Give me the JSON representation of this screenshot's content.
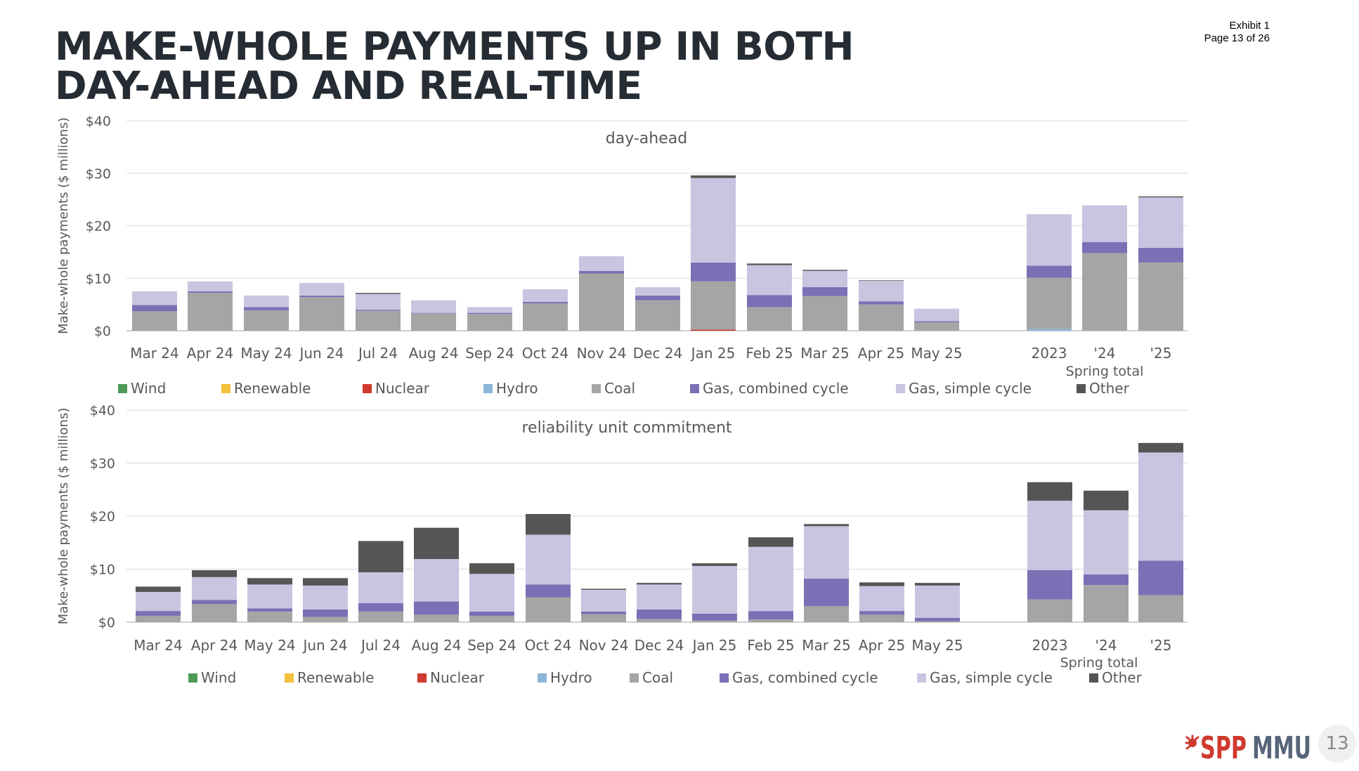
{
  "page": {
    "title_lines": [
      "MAKE-WHOLE PAYMENTS UP IN BOTH",
      "DAY-AHEAD AND REAL-TIME"
    ],
    "exhibit_line1": "Exhibit 1",
    "exhibit_line2": "Page 13 of 26",
    "page_number": "13",
    "logo_text_spp": "SPP",
    "logo_text_mmu": "MMU"
  },
  "colors": {
    "Wind": "#4e9a55",
    "Renewable": "#f2c03a",
    "Nuclear": "#d0392e",
    "Hydro": "#8db4d9",
    "Coal": "#a5a5a5",
    "Gas, combined cycle": "#7b6fb5",
    "Gas, simple cycle": "#c8c5e1",
    "Other": "#555555"
  },
  "chart_data": [
    {
      "type": "bar",
      "stacked": true,
      "title": "day-ahead",
      "ylabel": "Make-whole payments ($ millions)",
      "ylim": [
        0,
        40
      ],
      "yticks": [
        "$0",
        "$10",
        "$20",
        "$30",
        "$40"
      ],
      "categories": [
        "Mar 24",
        "Apr 24",
        "May 24",
        "Jun 24",
        "Jul 24",
        "Aug 24",
        "Sep 24",
        "Oct 24",
        "Nov 24",
        "Dec 24",
        "Jan 25",
        "Feb 25",
        "Mar 25",
        "Apr 25",
        "May 25",
        "2023",
        "'24",
        "'25"
      ],
      "group_label": "Spring total",
      "grid": true,
      "legend_position": "bottom",
      "series": [
        {
          "name": "Wind",
          "values": [
            0,
            0,
            0,
            0,
            0,
            0,
            0,
            0,
            0,
            0,
            0,
            0,
            0,
            0,
            0,
            0,
            0,
            0
          ]
        },
        {
          "name": "Renewable",
          "values": [
            0,
            0,
            0,
            0,
            0,
            0,
            0,
            0,
            0,
            0,
            0,
            0,
            0,
            0,
            0,
            0,
            0,
            0
          ]
        },
        {
          "name": "Nuclear",
          "values": [
            0,
            0,
            0,
            0,
            0,
            0,
            0,
            0,
            0,
            0,
            0.2,
            0,
            0,
            0,
            0,
            0,
            0,
            0
          ]
        },
        {
          "name": "Hydro",
          "values": [
            0,
            0,
            0,
            0,
            0,
            0,
            0,
            0,
            0,
            0,
            0,
            0,
            0,
            0,
            0,
            0.3,
            0,
            0
          ]
        },
        {
          "name": "Coal",
          "values": [
            3.7,
            7.2,
            3.9,
            6.4,
            3.8,
            3.3,
            3.2,
            5.2,
            10.9,
            5.8,
            9.2,
            4.5,
            6.6,
            5.0,
            1.6,
            9.8,
            14.8,
            13.0
          ]
        },
        {
          "name": "Gas, combined cycle",
          "values": [
            1.2,
            0.3,
            0.6,
            0.3,
            0.2,
            0.1,
            0.2,
            0.3,
            0.5,
            0.9,
            3.6,
            2.3,
            1.7,
            0.6,
            0.2,
            2.3,
            2.1,
            2.8
          ]
        },
        {
          "name": "Gas, simple cycle",
          "values": [
            2.6,
            1.9,
            2.2,
            2.4,
            3.0,
            2.4,
            1.1,
            2.4,
            2.8,
            1.6,
            16.1,
            5.7,
            3.1,
            3.9,
            2.4,
            9.8,
            7.0,
            9.6
          ]
        },
        {
          "name": "Other",
          "values": [
            0,
            0,
            0,
            0,
            0.2,
            0,
            0,
            0,
            0,
            0,
            0.5,
            0.3,
            0.2,
            0.1,
            0,
            0,
            0,
            0.2
          ]
        }
      ]
    },
    {
      "type": "bar",
      "stacked": true,
      "title": "reliability unit commitment",
      "ylabel": "Make-whole payments ($ millions)",
      "ylim": [
        0,
        40
      ],
      "yticks": [
        "$0",
        "$10",
        "$20",
        "$30",
        "$40"
      ],
      "categories": [
        "Mar 24",
        "Apr 24",
        "May 24",
        "Jun 24",
        "Jul 24",
        "Aug 24",
        "Sep 24",
        "Oct 24",
        "Nov 24",
        "Dec 24",
        "Jan 25",
        "Feb 25",
        "Mar 25",
        "Apr 25",
        "May 25",
        "2023",
        "'24",
        "'25"
      ],
      "group_label": "Spring total",
      "grid": true,
      "legend_position": "bottom",
      "series": [
        {
          "name": "Wind",
          "values": [
            0,
            0,
            0,
            0,
            0,
            0,
            0,
            0,
            0,
            0,
            0,
            0,
            0,
            0,
            0,
            0,
            0,
            0
          ]
        },
        {
          "name": "Renewable",
          "values": [
            0,
            0,
            0,
            0,
            0,
            0,
            0,
            0,
            0,
            0,
            0,
            0,
            0,
            0,
            0,
            0,
            0,
            0
          ]
        },
        {
          "name": "Nuclear",
          "values": [
            0,
            0,
            0,
            0,
            0,
            0,
            0,
            0,
            0,
            0,
            0,
            0,
            0,
            0,
            0,
            0,
            0,
            0
          ]
        },
        {
          "name": "Hydro",
          "values": [
            0,
            0,
            0,
            0,
            0,
            0,
            0,
            0,
            0,
            0,
            0,
            0,
            0,
            0,
            0,
            0,
            0,
            0
          ]
        },
        {
          "name": "Coal",
          "values": [
            1.2,
            3.4,
            2.0,
            1.0,
            2.0,
            1.4,
            1.2,
            4.7,
            1.5,
            0.6,
            0.3,
            0.5,
            3.0,
            1.4,
            0.2,
            4.3,
            7.0,
            5.1
          ]
        },
        {
          "name": "Gas, combined cycle",
          "values": [
            0.9,
            0.8,
            0.6,
            1.4,
            1.6,
            2.5,
            0.8,
            2.4,
            0.5,
            1.8,
            1.3,
            1.6,
            5.2,
            0.7,
            0.6,
            5.5,
            2.0,
            6.5
          ]
        },
        {
          "name": "Gas, simple cycle",
          "values": [
            3.6,
            4.3,
            4.5,
            4.5,
            5.8,
            8.0,
            7.1,
            9.4,
            4.1,
            4.7,
            9.0,
            12.1,
            9.9,
            4.7,
            6.1,
            13.1,
            12.1,
            20.4
          ]
        },
        {
          "name": "Other",
          "values": [
            1.0,
            1.3,
            1.2,
            1.4,
            5.9,
            5.9,
            2.0,
            3.9,
            0.2,
            0.3,
            0.5,
            1.8,
            0.4,
            0.7,
            0.5,
            3.5,
            3.7,
            1.8
          ]
        }
      ]
    }
  ]
}
